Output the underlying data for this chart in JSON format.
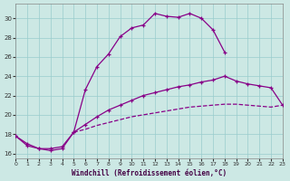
{
  "xlabel": "Windchill (Refroidissement éolien,°C)",
  "bg_color": "#cce8e4",
  "grid_color": "#99cccc",
  "line_color": "#880088",
  "xlim": [
    0,
    23
  ],
  "ylim": [
    15.5,
    31.5
  ],
  "yticks": [
    16,
    18,
    20,
    22,
    24,
    26,
    28,
    30
  ],
  "xticks": [
    0,
    1,
    2,
    3,
    4,
    5,
    6,
    7,
    8,
    9,
    10,
    11,
    12,
    13,
    14,
    15,
    16,
    17,
    18,
    19,
    20,
    21,
    22,
    23
  ],
  "line1_x": [
    0,
    1,
    2,
    3,
    4,
    5,
    6,
    7,
    8,
    9,
    10,
    11,
    12,
    13,
    14,
    15,
    16,
    17,
    18
  ],
  "line1_y": [
    17.8,
    17.0,
    16.5,
    16.3,
    16.5,
    18.2,
    22.6,
    25.0,
    26.3,
    28.1,
    29.0,
    29.3,
    30.5,
    30.2,
    30.1,
    30.5,
    30.0,
    28.8,
    26.5
  ],
  "line2_x": [
    0,
    1,
    2,
    3,
    4,
    5,
    6,
    7,
    8,
    9,
    10,
    11,
    12,
    13,
    14,
    15,
    16,
    17,
    18,
    19,
    20,
    21,
    22,
    23
  ],
  "line2_y": [
    17.8,
    16.8,
    16.5,
    16.5,
    16.7,
    18.2,
    19.0,
    19.8,
    20.5,
    21.0,
    21.5,
    22.0,
    22.3,
    22.6,
    22.9,
    23.1,
    23.4,
    23.6,
    24.0,
    23.5,
    23.2,
    23.0,
    22.8,
    21.0
  ],
  "line3_x": [
    5,
    6,
    7,
    8,
    9,
    10,
    11,
    12,
    13,
    14,
    15,
    16,
    17,
    18,
    19,
    20,
    21,
    22,
    23
  ],
  "line3_y": [
    18.2,
    18.5,
    18.9,
    19.2,
    19.5,
    19.8,
    20.0,
    20.2,
    20.4,
    20.6,
    20.8,
    20.9,
    21.0,
    21.1,
    21.1,
    21.0,
    20.9,
    20.8,
    21.0
  ]
}
